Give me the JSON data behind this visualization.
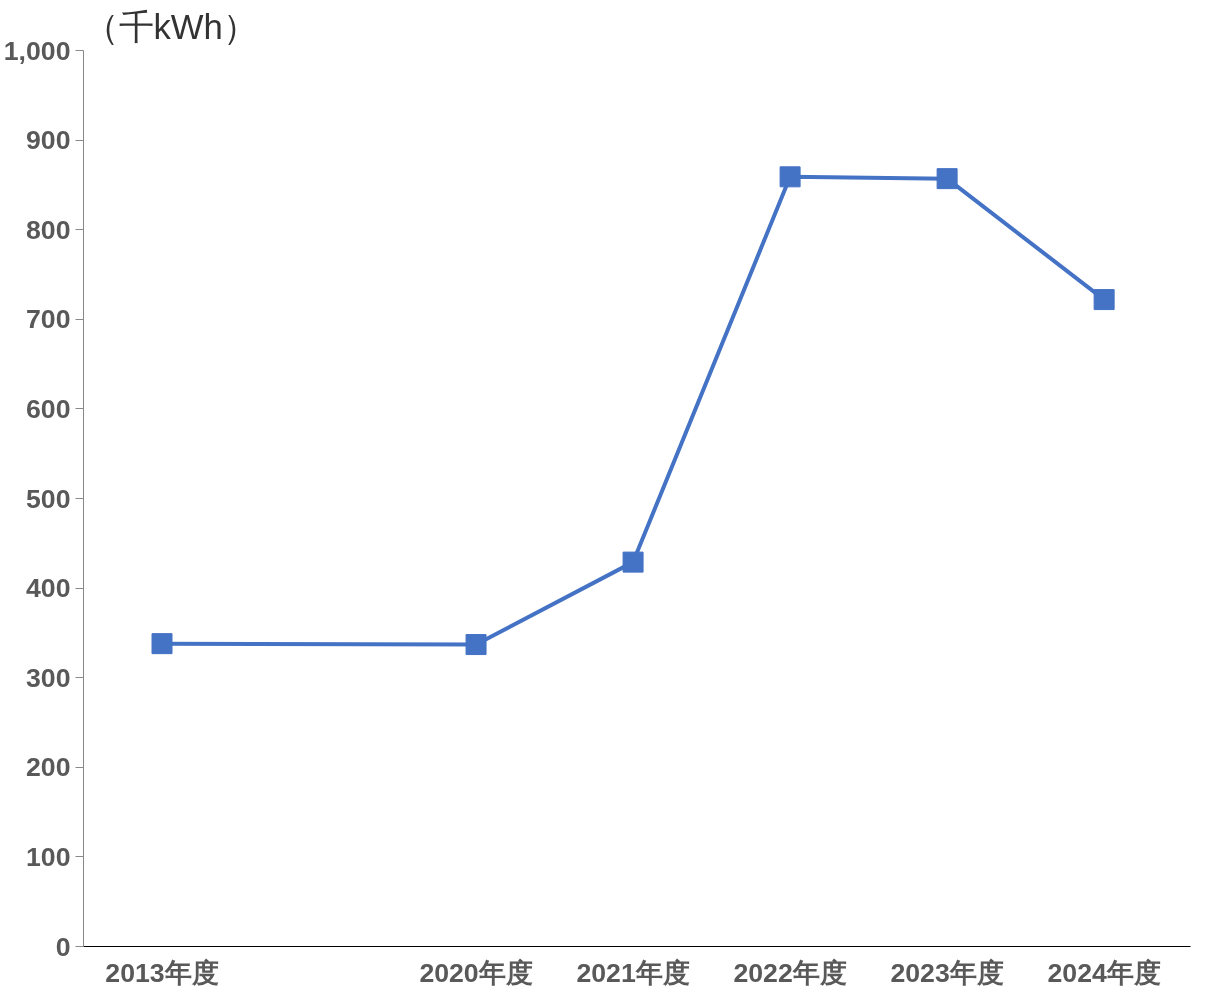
{
  "chart_data": {
    "type": "line",
    "ylabel": "（千kWh）",
    "categories": [
      "2013年度",
      null,
      "2020年度",
      "2021年度",
      "2022年度",
      "2023年度",
      "2024年度"
    ],
    "series": [
      {
        "color": "#4472c4",
        "values": [
          338,
          null,
          337,
          429,
          859,
          857,
          722
        ]
      }
    ],
    "marker": "square",
    "ylim": [
      0,
      1000
    ],
    "yticks": [
      0,
      100,
      200,
      300,
      400,
      500,
      600,
      700,
      800,
      900,
      {
        "value": 1000,
        "label": "1,000"
      }
    ],
    "grid": false
  }
}
